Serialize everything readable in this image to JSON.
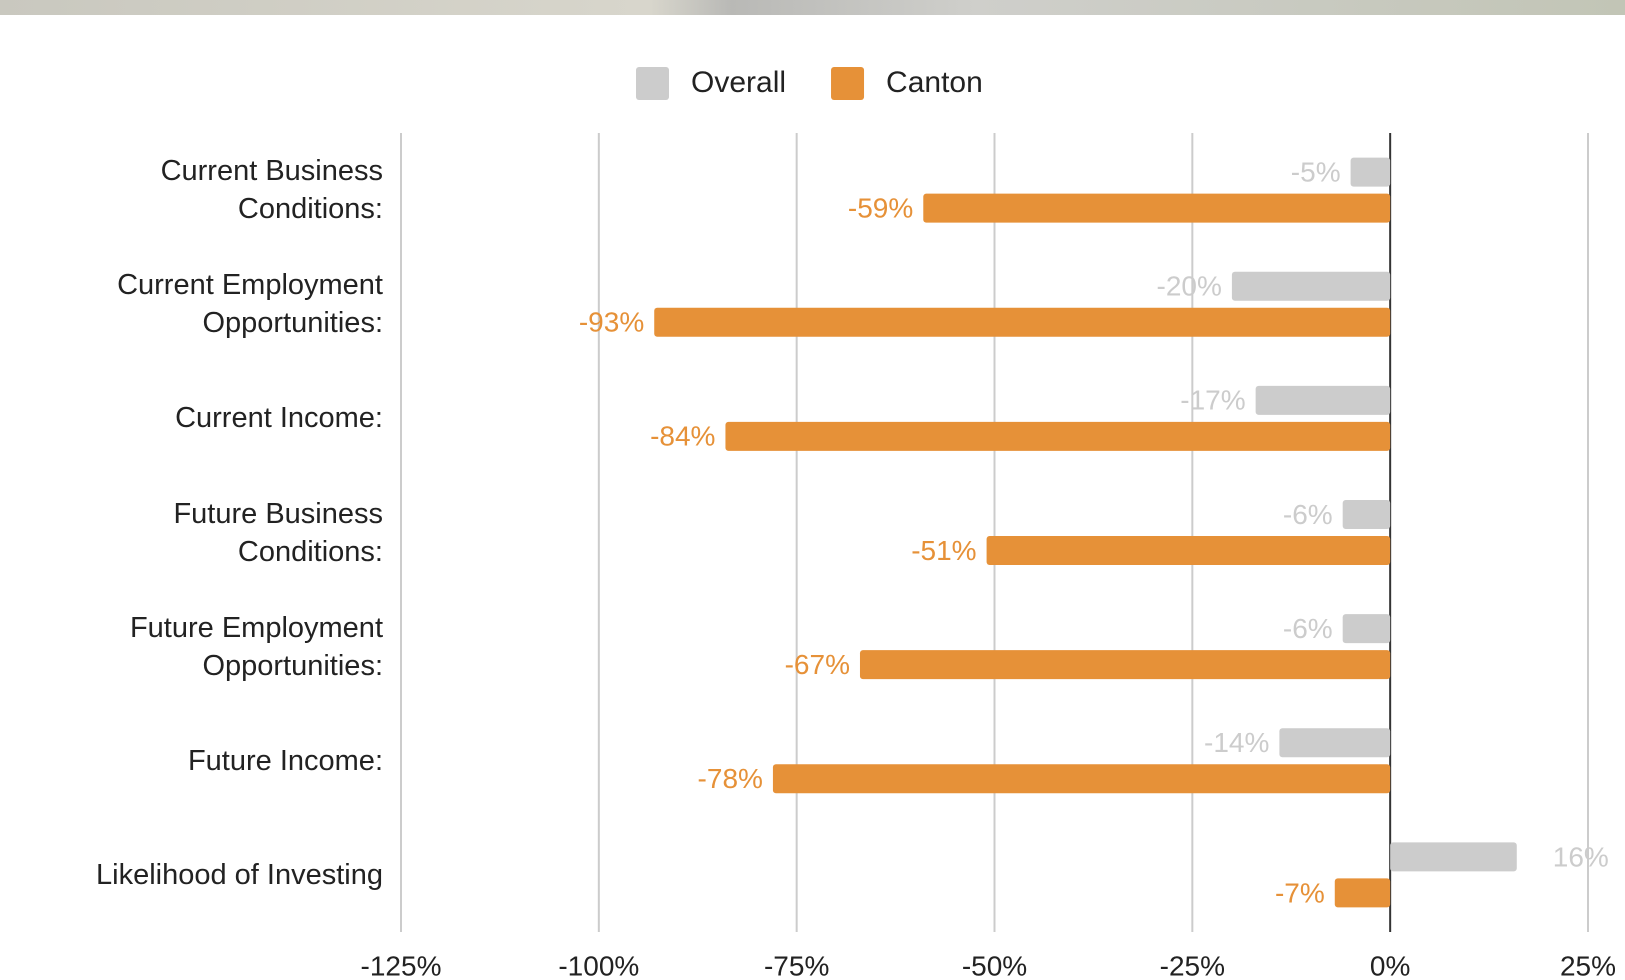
{
  "chart_data": {
    "type": "bar",
    "orientation": "horizontal",
    "categories": [
      "Current Business Conditions:",
      "Current Employment Opportunities:",
      "Current Income:",
      "Future Business Conditions:",
      "Future Employment Opportunities:",
      "Future Income:",
      "Likelihood of Investing"
    ],
    "series": [
      {
        "name": "Overall",
        "color": "#cccccc",
        "values": [
          -5,
          -20,
          -17,
          -6,
          -6,
          -14,
          16
        ],
        "value_labels": [
          "-5%",
          "-20%",
          "-17%",
          "-6%",
          "-6%",
          "-14%",
          "16%"
        ]
      },
      {
        "name": "Canton",
        "color": "#e69138",
        "values": [
          -59,
          -93,
          -84,
          -51,
          -67,
          -78,
          -7
        ],
        "value_labels": [
          "-59%",
          "-93%",
          "-84%",
          "-51%",
          "-67%",
          "-78%",
          "-7%"
        ]
      }
    ],
    "xlim": [
      -125,
      25
    ],
    "xticks": [
      {
        "value": -125,
        "label": "-125%"
      },
      {
        "value": -100,
        "label": "-100%"
      },
      {
        "value": -75,
        "label": "-75%"
      },
      {
        "value": -50,
        "label": "-50%"
      },
      {
        "value": -25,
        "label": "-25%"
      },
      {
        "value": 0,
        "label": "0%"
      },
      {
        "value": 25,
        "label": "25%"
      }
    ],
    "grid": true,
    "legend": "top"
  }
}
